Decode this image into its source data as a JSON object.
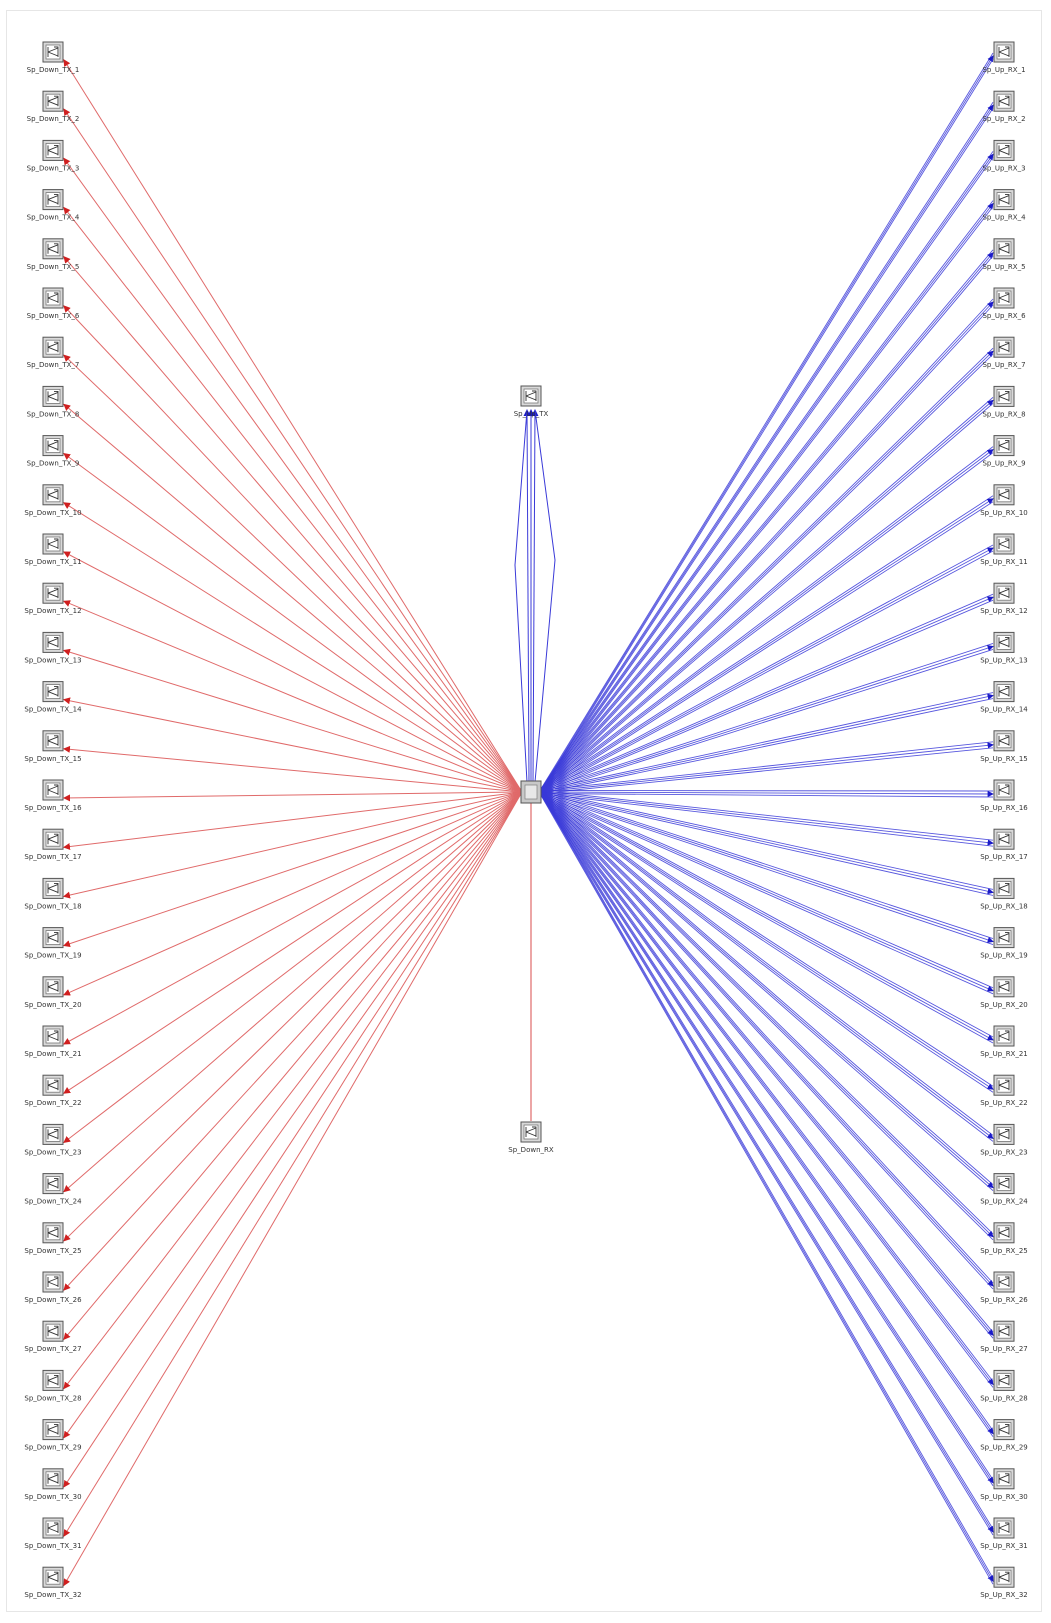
{
  "colors": {
    "downlink": "#e06a6a",
    "uplink": "#3a3ad8",
    "node_fill": "#d9d9d9",
    "node_stroke": "#555555",
    "label": "#333333"
  },
  "nodes": {
    "left_prefix": "Sp_Down_TX_",
    "right_prefix": "Sp_Up_RX_",
    "left_labels": [
      "Sp_Down_TX_1",
      "Sp_Down_TX_2",
      "Sp_Down_TX_3",
      "Sp_Down_TX_4",
      "Sp_Down_TX_5",
      "Sp_Down_TX_6",
      "Sp_Down_TX_7",
      "Sp_Down_TX_8",
      "Sp_Down_TX_9",
      "Sp_Down_TX_10",
      "Sp_Down_TX_11",
      "Sp_Down_TX_12",
      "Sp_Down_TX_13",
      "Sp_Down_TX_14",
      "Sp_Down_TX_15",
      "Sp_Down_TX_16",
      "Sp_Down_TX_17",
      "Sp_Down_TX_18",
      "Sp_Down_TX_19",
      "Sp_Down_TX_20",
      "Sp_Down_TX_21",
      "Sp_Down_TX_22",
      "Sp_Down_TX_23",
      "Sp_Down_TX_24",
      "Sp_Down_TX_25",
      "Sp_Down_TX_26",
      "Sp_Down_TX_27",
      "Sp_Down_TX_28",
      "Sp_Down_TX_29",
      "Sp_Down_TX_30",
      "Sp_Down_TX_31",
      "Sp_Down_TX_32"
    ],
    "right_labels": [
      "Sp_Up_RX_1",
      "Sp_Up_RX_2",
      "Sp_Up_RX_3",
      "Sp_Up_RX_4",
      "Sp_Up_RX_5",
      "Sp_Up_RX_6",
      "Sp_Up_RX_7",
      "Sp_Up_RX_8",
      "Sp_Up_RX_9",
      "Sp_Up_RX_10",
      "Sp_Up_RX_11",
      "Sp_Up_RX_12",
      "Sp_Up_RX_13",
      "Sp_Up_RX_14",
      "Sp_Up_RX_15",
      "Sp_Up_RX_16",
      "Sp_Up_RX_17",
      "Sp_Up_RX_18",
      "Sp_Up_RX_19",
      "Sp_Up_RX_20",
      "Sp_Up_RX_21",
      "Sp_Up_RX_22",
      "Sp_Up_RX_23",
      "Sp_Up_RX_24",
      "Sp_Up_RX_25",
      "Sp_Up_RX_26",
      "Sp_Up_RX_27",
      "Sp_Up_RX_28",
      "Sp_Up_RX_29",
      "Sp_Up_RX_30",
      "Sp_Up_RX_31",
      "Sp_Up_RX_32"
    ],
    "top_label": "Sp_Up_TX",
    "bottom_label": "Sp_Down_RX",
    "hub_label": ""
  },
  "edges": {
    "left_links": 32,
    "right_links": 32,
    "right_parallel_lines": 3,
    "top_parallel_lines": 3
  }
}
